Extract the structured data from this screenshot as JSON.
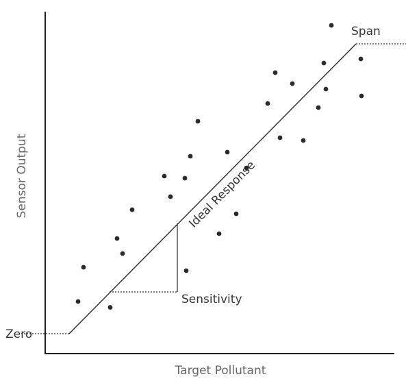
{
  "chart_data": {
    "type": "scatter",
    "xlabel": "Target Pollutant",
    "ylabel": "Sensor Output",
    "xlim": [
      0,
      100
    ],
    "ylim": [
      0,
      100
    ],
    "grid": false,
    "points": [
      {
        "x": 9.6,
        "y": 15.2
      },
      {
        "x": 11.2,
        "y": 25.2
      },
      {
        "x": 19.0,
        "y": 13.5
      },
      {
        "x": 21.0,
        "y": 33.6
      },
      {
        "x": 22.6,
        "y": 29.2
      },
      {
        "x": 25.4,
        "y": 42.0
      },
      {
        "x": 34.8,
        "y": 51.8
      },
      {
        "x": 36.6,
        "y": 45.8
      },
      {
        "x": 40.8,
        "y": 51.2
      },
      {
        "x": 41.2,
        "y": 24.2
      },
      {
        "x": 42.4,
        "y": 57.6
      },
      {
        "x": 44.6,
        "y": 67.8
      },
      {
        "x": 50.8,
        "y": 35.0
      },
      {
        "x": 53.2,
        "y": 58.8
      },
      {
        "x": 55.8,
        "y": 40.8
      },
      {
        "x": 58.8,
        "y": 54.2
      },
      {
        "x": 65.0,
        "y": 73.0
      },
      {
        "x": 67.2,
        "y": 82.0
      },
      {
        "x": 68.6,
        "y": 63.0
      },
      {
        "x": 72.2,
        "y": 78.8
      },
      {
        "x": 75.4,
        "y": 62.2
      },
      {
        "x": 79.8,
        "y": 71.8
      },
      {
        "x": 81.4,
        "y": 84.8
      },
      {
        "x": 82.0,
        "y": 77.2
      },
      {
        "x": 83.6,
        "y": 95.8
      },
      {
        "x": 92.2,
        "y": 86.0
      },
      {
        "x": 92.4,
        "y": 75.2
      }
    ],
    "ideal_line": {
      "label": "Ideal Response",
      "x": [
        7.0,
        90.8
      ],
      "y": [
        5.8,
        90.4
      ]
    },
    "annotations": {
      "zero": {
        "label": "Zero",
        "y": 5.8,
        "x_from": -7.0,
        "x_to": 7.0
      },
      "span": {
        "label": "Span",
        "y": 90.4,
        "x_from": 90.8,
        "x_to": 106.0
      },
      "sensitivity": {
        "label": "Sensitivity",
        "x_from": 18.8,
        "x_to": 38.6,
        "y_from": 18.0,
        "y_to": 38.0
      }
    }
  }
}
